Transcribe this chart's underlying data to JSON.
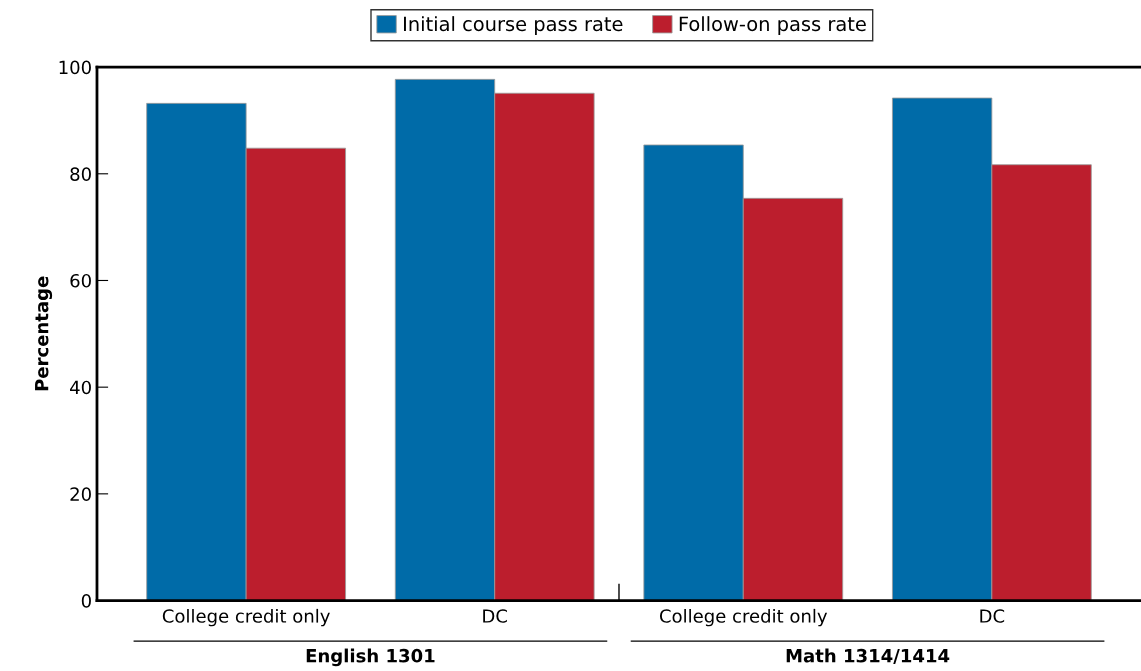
{
  "chart_data": {
    "type": "bar",
    "ylabel": "Percentage",
    "categories": [
      "College credit only",
      "DC",
      "College credit only",
      "DC"
    ],
    "series": [
      {
        "name": "Initial course pass rate",
        "color": "#006ba8",
        "values": [
          93.2,
          97.7,
          85.4,
          94.2
        ]
      },
      {
        "name": "Follow-on pass rate",
        "color": "#bc1e2d",
        "values": [
          84.8,
          95.1,
          75.4,
          81.7
        ]
      }
    ],
    "annotations": [
      "English 1301",
      "Math 1314/1414"
    ],
    "ylim": [
      0,
      100
    ],
    "yticks": [
      0,
      20,
      40,
      60,
      80,
      100
    ],
    "grid": false,
    "legend": "top"
  }
}
